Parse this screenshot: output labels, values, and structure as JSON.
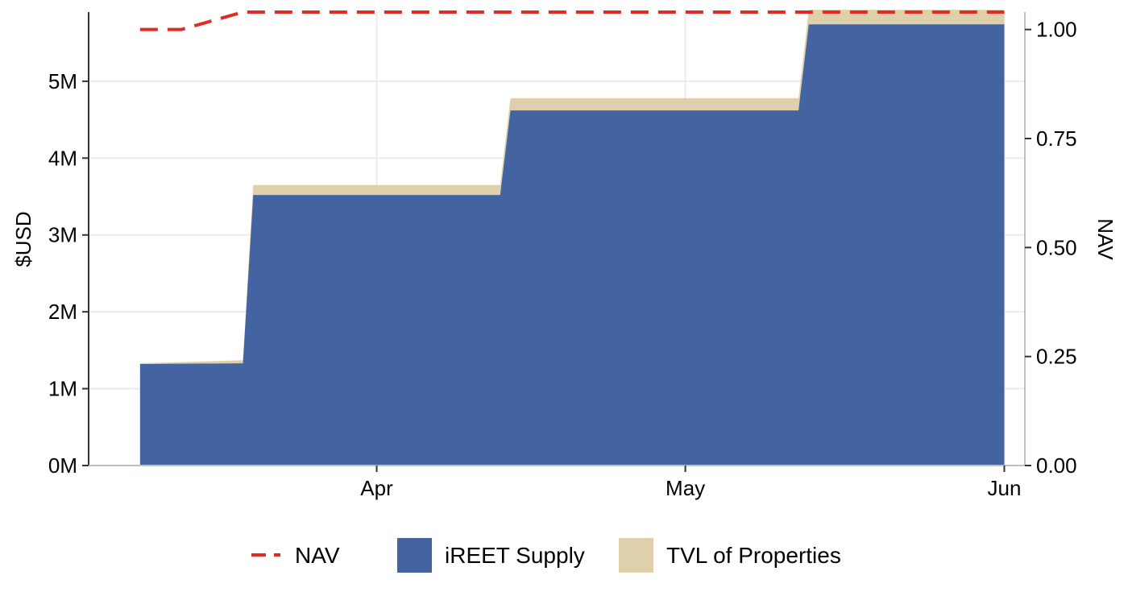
{
  "chart_data": {
    "type": "area",
    "title": "",
    "xlabel": "",
    "ylabel": "$USD",
    "y2label": "NAV",
    "x_ticks": [
      {
        "label": "Apr",
        "date": "2024-04-01"
      },
      {
        "label": "May",
        "date": "2024-05-01"
      },
      {
        "label": "Jun",
        "date": "2024-06-01"
      }
    ],
    "xlim": [
      "2024-03-04",
      "2024-06-03"
    ],
    "ylim": [
      0,
      5.9
    ],
    "y_unit": "M",
    "y_ticks": [
      "0M",
      "1M",
      "2M",
      "3M",
      "4M",
      "5M"
    ],
    "y2lim": [
      0,
      1.04
    ],
    "y2_ticks": [
      "0.00",
      "0.25",
      "0.50",
      "0.75",
      "1.00"
    ],
    "grid": true,
    "legend_position": "bottom",
    "stacked": true,
    "x": [
      "2024-03-09",
      "2024-03-19",
      "2024-03-20",
      "2024-04-13",
      "2024-04-14",
      "2024-05-12",
      "2024-05-13",
      "2024-06-01"
    ],
    "series": [
      {
        "name": "iREET Supply",
        "kind": "area",
        "color": "#4364A1",
        "values": [
          1.32,
          1.33,
          3.52,
          3.52,
          4.62,
          4.62,
          5.74,
          5.74
        ]
      },
      {
        "name": "TVL of Properties",
        "kind": "area",
        "color": "#DFD0AC",
        "values": [
          1.33,
          1.37,
          3.65,
          3.65,
          4.78,
          4.78,
          5.93,
          5.93
        ]
      },
      {
        "name": "NAV",
        "kind": "line",
        "axis": "right",
        "color": "#E02C25",
        "dash": true,
        "x": [
          "2024-03-09",
          "2024-03-13",
          "2024-03-19",
          "2024-06-01"
        ],
        "values": [
          1.0,
          1.0,
          1.04,
          1.04
        ]
      }
    ],
    "legend": [
      {
        "label": "NAV",
        "kind": "line",
        "color": "#E02C25"
      },
      {
        "label": "iREET Supply",
        "kind": "fill",
        "color": "#4364A1"
      },
      {
        "label": "TVL of Properties",
        "kind": "fill",
        "color": "#DFD0AC"
      }
    ]
  }
}
